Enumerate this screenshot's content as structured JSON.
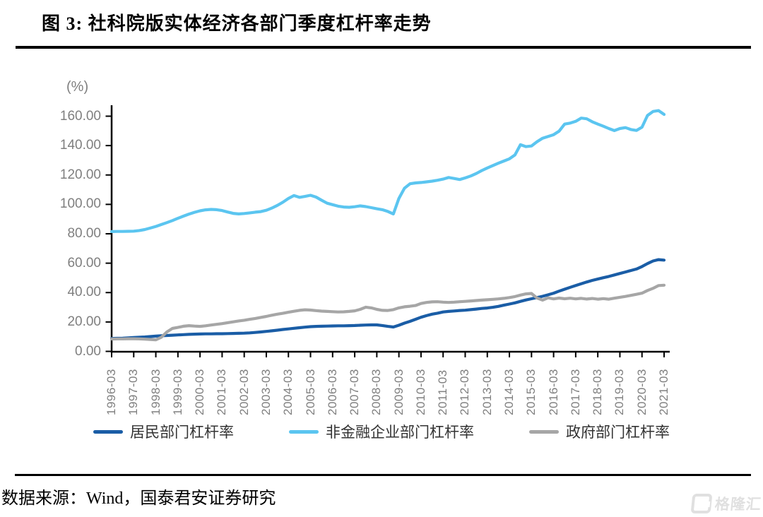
{
  "header": {
    "title": "图 3: 社科院版实体经济各部门季度杠杆率走势"
  },
  "footer": {
    "source": "数据来源：Wind，国泰君安证券研究",
    "watermark": "格隆汇"
  },
  "chart_data": {
    "type": "line",
    "title": "社科院版实体经济各部门季度杠杆率走势",
    "unit_label": "(%)",
    "ylim": [
      0,
      160
    ],
    "y_tick_step": 20,
    "y_tick_labels": [
      "0.00",
      "20.00",
      "40.00",
      "60.00",
      "80.00",
      "100.00",
      "120.00",
      "140.00",
      "160.00"
    ],
    "x_frequency": "quarterly",
    "x_start": "1996-03",
    "x_end": "2021-03",
    "x_tick_labels": [
      "1996-03",
      "1997-03",
      "1998-03",
      "1999-03",
      "2000-03",
      "2001-03",
      "2002-03",
      "2003-03",
      "2004-03",
      "2005-03",
      "2006-03",
      "2007-03",
      "2008-03",
      "2009-03",
      "2010-03",
      "2011-03",
      "2012-03",
      "2013-03",
      "2014-03",
      "2015-03",
      "2016-03",
      "2017-03",
      "2018-03",
      "2019-03",
      "2020-03",
      "2021-03"
    ],
    "grid": false,
    "legend_position": "bottom",
    "axis_color": "#000000",
    "tick_label_color": "#7f7f7f",
    "series": [
      {
        "name": "居民部门杠杆率",
        "color": "#1a5da6",
        "values": [
          8.8,
          8.9,
          9.0,
          9.2,
          9.4,
          9.6,
          9.8,
          10.1,
          10.4,
          10.6,
          10.8,
          11.0,
          11.2,
          11.4,
          11.6,
          11.7,
          11.8,
          11.9,
          11.9,
          12.0,
          12.0,
          12.1,
          12.2,
          12.3,
          12.4,
          12.6,
          12.9,
          13.2,
          13.6,
          14.0,
          14.4,
          14.9,
          15.3,
          15.7,
          16.1,
          16.5,
          16.8,
          17.0,
          17.1,
          17.2,
          17.3,
          17.4,
          17.4,
          17.5,
          17.6,
          17.8,
          17.9,
          18.0,
          18.0,
          17.6,
          17.0,
          16.6,
          17.8,
          19.2,
          20.4,
          21.8,
          23.2,
          24.3,
          25.3,
          26.0,
          26.8,
          27.2,
          27.5,
          27.8,
          28.0,
          28.4,
          28.8,
          29.2,
          29.5,
          30.0,
          30.6,
          31.4,
          32.2,
          33.0,
          34.0,
          35.0,
          35.8,
          36.6,
          37.5,
          38.5,
          39.6,
          41.0,
          42.3,
          43.6,
          44.8,
          46.0,
          47.2,
          48.3,
          49.2,
          50.1,
          51.0,
          52.0,
          53.0,
          54.0,
          55.0,
          56.0,
          57.7,
          59.7,
          61.5,
          62.4,
          62.1
        ]
      },
      {
        "name": "非金融企业部门杠杆率",
        "color": "#5bc5f0",
        "values": [
          81.5,
          81.6,
          81.6,
          81.7,
          81.8,
          82.2,
          82.9,
          83.9,
          85.0,
          86.3,
          87.6,
          89.0,
          90.5,
          92.0,
          93.4,
          94.6,
          95.6,
          96.3,
          96.6,
          96.4,
          95.8,
          94.8,
          93.9,
          93.5,
          93.8,
          94.2,
          94.7,
          95.1,
          96.0,
          97.5,
          99.3,
          101.5,
          104.0,
          106.0,
          104.8,
          105.4,
          106.2,
          105.0,
          102.8,
          100.8,
          99.8,
          98.8,
          98.2,
          98.0,
          98.4,
          99.0,
          98.5,
          97.8,
          97.0,
          96.4,
          95.2,
          93.5,
          104.0,
          111.0,
          114.0,
          114.6,
          114.9,
          115.3,
          115.8,
          116.4,
          117.2,
          118.3,
          117.6,
          116.9,
          118.0,
          119.3,
          121.0,
          123.0,
          124.8,
          126.4,
          128.0,
          129.5,
          131.0,
          133.6,
          140.6,
          139.3,
          139.7,
          142.6,
          145.0,
          146.2,
          147.4,
          149.8,
          154.6,
          155.3,
          156.5,
          158.7,
          158.2,
          156.2,
          154.6,
          153.2,
          151.6,
          150.2,
          151.6,
          152.2,
          150.9,
          150.3,
          152.5,
          160.5,
          163.2,
          163.8,
          161.2
        ]
      },
      {
        "name": "政府部门杠杆率",
        "color": "#a6a6a6",
        "values": [
          8.4,
          8.5,
          8.5,
          8.6,
          8.6,
          8.5,
          8.3,
          8.1,
          7.9,
          9.6,
          13.2,
          15.6,
          16.3,
          17.1,
          17.5,
          17.2,
          17.0,
          17.4,
          17.9,
          18.4,
          18.9,
          19.5,
          20.1,
          20.7,
          21.2,
          21.8,
          22.4,
          23.1,
          23.8,
          24.6,
          25.3,
          25.9,
          26.6,
          27.3,
          27.9,
          28.3,
          28.1,
          27.7,
          27.4,
          27.2,
          27.0,
          26.8,
          26.9,
          27.2,
          27.6,
          28.6,
          30.1,
          29.6,
          28.6,
          27.9,
          27.8,
          28.4,
          29.6,
          30.3,
          30.7,
          31.2,
          32.6,
          33.3,
          33.7,
          33.8,
          33.5,
          33.3,
          33.5,
          33.8,
          34.0,
          34.3,
          34.6,
          34.9,
          35.1,
          35.4,
          35.7,
          36.1,
          36.6,
          37.3,
          38.3,
          39.1,
          39.4,
          36.3,
          34.9,
          36.4,
          35.7,
          36.3,
          35.8,
          36.2,
          35.7,
          36.1,
          35.6,
          36.0,
          35.5,
          35.9,
          35.5,
          36.2,
          36.8,
          37.4,
          38.1,
          38.8,
          39.6,
          41.4,
          42.9,
          44.8,
          45.0
        ]
      }
    ]
  }
}
